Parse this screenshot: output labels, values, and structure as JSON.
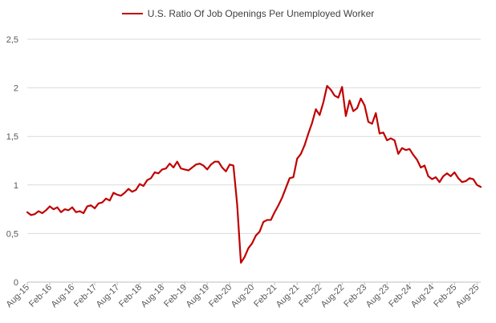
{
  "legend": {
    "label": "U.S. Ratio Of Job Openings Per Unemployed Worker",
    "color": "#c00000"
  },
  "chart_data": {
    "type": "line",
    "legend_position": "top",
    "grid": "horizontal",
    "ylim": [
      0,
      2.5
    ],
    "y_ticks": [
      0,
      0.5,
      1,
      1.5,
      2,
      2.5
    ],
    "y_tick_labels": [
      "0",
      "0,5",
      "1",
      "1,5",
      "2",
      "2,5"
    ],
    "x_tick_labels": [
      "Aug-15",
      "Feb-16",
      "Aug-16",
      "Feb-17",
      "Aug-17",
      "Feb-18",
      "Aug-18",
      "Feb-19",
      "Aug-19",
      "Feb-20",
      "Aug-20",
      "Feb-21",
      "Aug-21",
      "Feb-22",
      "Aug-22",
      "Feb-23",
      "Aug-23",
      "Feb-24",
      "Aug-24",
      "Feb-25",
      "Aug-25"
    ],
    "x_start": "Aug-15",
    "x_end": "Aug-25",
    "series": [
      {
        "name": "U.S. Ratio Of Job Openings Per Unemployed Worker",
        "color": "#c00000",
        "values": [
          0.72,
          0.69,
          0.7,
          0.73,
          0.71,
          0.74,
          0.78,
          0.75,
          0.77,
          0.72,
          0.75,
          0.74,
          0.77,
          0.72,
          0.73,
          0.71,
          0.78,
          0.79,
          0.76,
          0.81,
          0.82,
          0.86,
          0.84,
          0.92,
          0.9,
          0.89,
          0.92,
          0.96,
          0.93,
          0.95,
          1.01,
          0.99,
          1.05,
          1.07,
          1.13,
          1.12,
          1.16,
          1.17,
          1.22,
          1.18,
          1.24,
          1.17,
          1.16,
          1.15,
          1.18,
          1.21,
          1.22,
          1.2,
          1.16,
          1.21,
          1.24,
          1.24,
          1.18,
          1.14,
          1.21,
          1.2,
          0.8,
          0.2,
          0.26,
          0.35,
          0.4,
          0.48,
          0.52,
          0.62,
          0.64,
          0.64,
          0.72,
          0.79,
          0.87,
          0.97,
          1.07,
          1.08,
          1.27,
          1.32,
          1.41,
          1.53,
          1.64,
          1.78,
          1.72,
          1.85,
          2.02,
          1.98,
          1.92,
          1.9,
          2.01,
          1.71,
          1.87,
          1.76,
          1.79,
          1.89,
          1.82,
          1.65,
          1.63,
          1.74,
          1.53,
          1.54,
          1.46,
          1.48,
          1.46,
          1.32,
          1.38,
          1.36,
          1.37,
          1.31,
          1.26,
          1.18,
          1.2,
          1.09,
          1.06,
          1.08,
          1.03,
          1.09,
          1.12,
          1.09,
          1.13,
          1.07,
          1.03,
          1.04,
          1.07,
          1.06,
          1.0,
          0.98
        ]
      }
    ]
  }
}
